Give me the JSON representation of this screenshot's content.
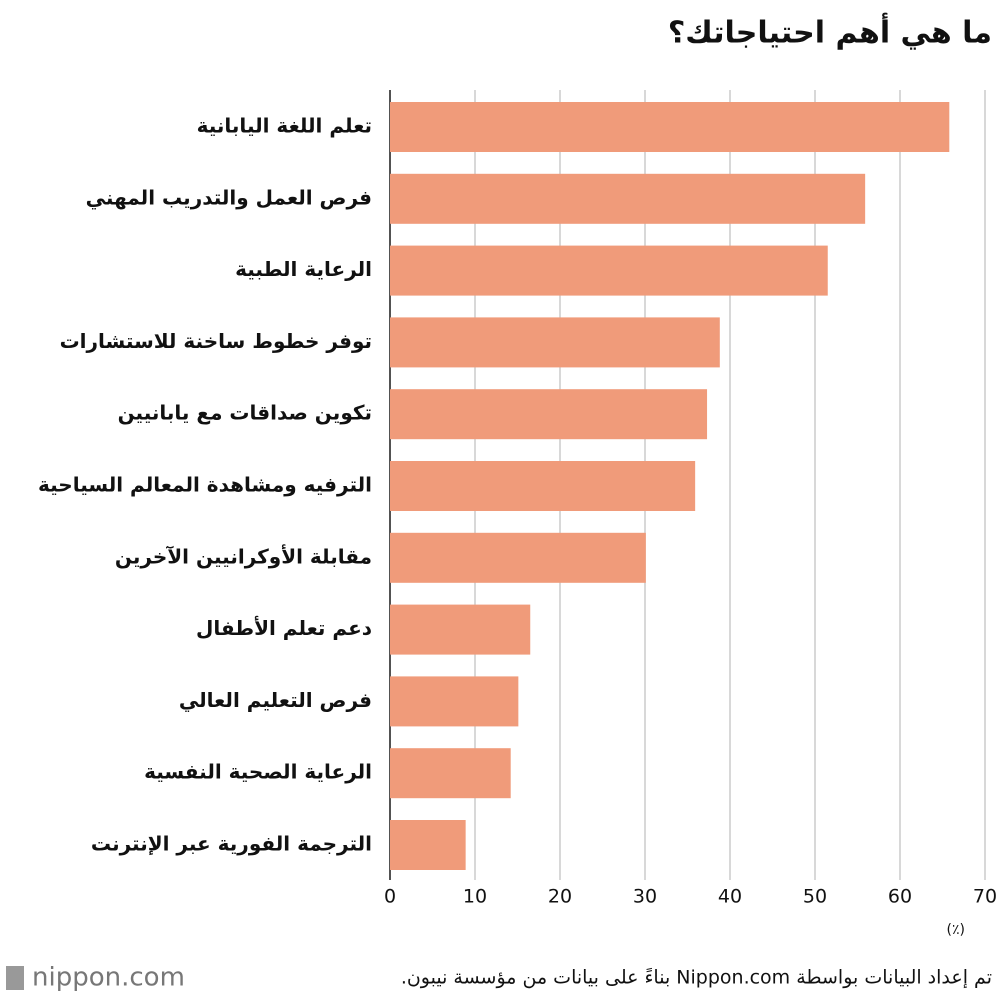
{
  "chart_data": {
    "type": "bar",
    "orientation": "horizontal",
    "title": "ما هي أهم احتياجاتك؟",
    "categories": [
      "تعلم اللغة اليابانية",
      "فرص العمل والتدريب المهني",
      "الرعاية الطبية",
      "توفر خطوط ساخنة للاستشارات",
      "تكوين صداقات مع يابانيين",
      "الترفيه ومشاهدة المعالم السياحية",
      "مقابلة الأوكرانيين الآخرين",
      "دعم تعلم الأطفال",
      "فرص التعليم العالي",
      "الرعاية الصحية النفسية",
      "الترجمة الفورية عبر الإنترنت"
    ],
    "values": [
      65.8,
      55.9,
      51.5,
      38.8,
      37.3,
      35.9,
      30.1,
      16.5,
      15.1,
      14.2,
      8.9
    ],
    "color": "#f09b7a",
    "xlim": [
      0,
      70
    ],
    "xticks": [
      0,
      10,
      20,
      30,
      40,
      50,
      60,
      70
    ],
    "grid": true,
    "unit_label": "(٪)",
    "source": "تم إعداد البيانات بواسطة Nippon.com بناءً على بيانات من مؤسسة نيبون.",
    "logo": "nippon.com"
  }
}
